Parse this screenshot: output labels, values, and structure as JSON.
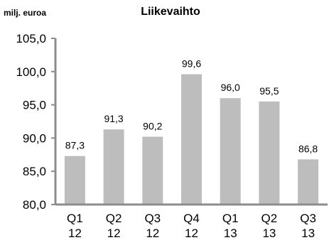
{
  "chart_data": {
    "type": "bar",
    "title": "Liikevaihto",
    "ylabel": "milj. euroa",
    "xlabel": "",
    "categories": [
      [
        "Q1",
        "12"
      ],
      [
        "Q2",
        "12"
      ],
      [
        "Q3",
        "12"
      ],
      [
        "Q4",
        "12"
      ],
      [
        "Q1",
        "13"
      ],
      [
        "Q2",
        "13"
      ],
      [
        "Q3",
        "13"
      ]
    ],
    "values": [
      87.3,
      91.3,
      90.2,
      99.6,
      96.0,
      95.5,
      86.8
    ],
    "value_labels": [
      "87,3",
      "91,3",
      "90,2",
      "99,6",
      "96,0",
      "95,5",
      "86,8"
    ],
    "ylim": [
      80,
      105
    ],
    "yticks": [
      80,
      85,
      90,
      95,
      100,
      105
    ],
    "ytick_labels": [
      "80,0",
      "85,0",
      "90,0",
      "95,0",
      "100,0",
      "105,0"
    ],
    "grid": false,
    "colors": {
      "bar": "#bdbdbd",
      "axis": "#8c8c8c"
    }
  }
}
